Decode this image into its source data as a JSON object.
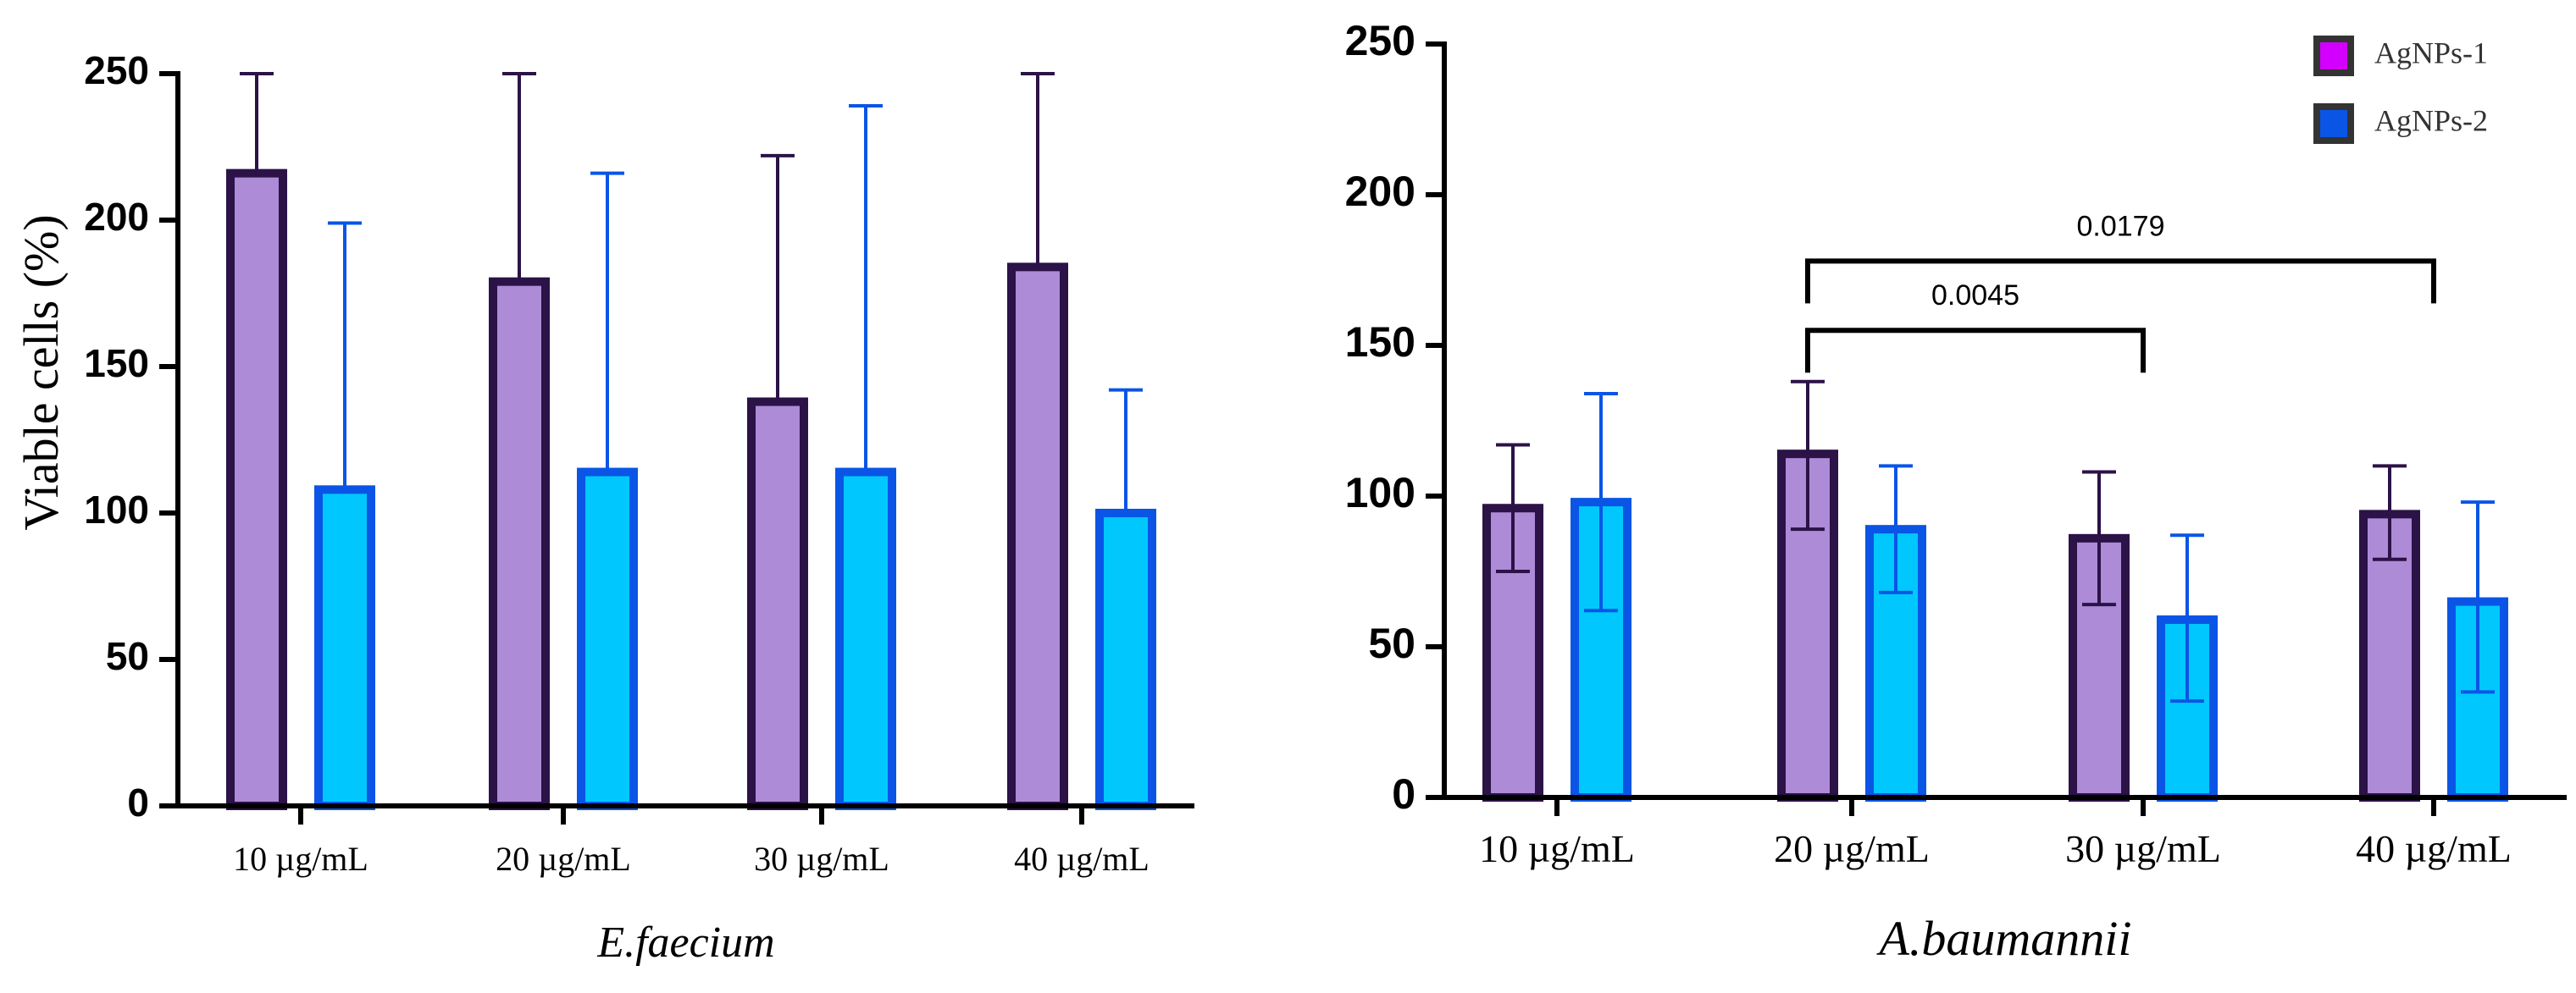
{
  "chart_data": [
    {
      "type": "bar",
      "title": "E.faecium",
      "xlabel": "E.faecium",
      "ylabel": "Viable cells (%)",
      "ylim": [
        0,
        250
      ],
      "yticks": [
        0,
        50,
        100,
        150,
        200,
        250
      ],
      "grid": false,
      "categories": [
        "10 µg/mL",
        "20 µg/mL",
        "30 µg/mL",
        "40 µg/mL"
      ],
      "series": [
        {
          "name": "AgNPs-1",
          "values": [
            216,
            179,
            138,
            184
          ],
          "error_upper": [
            250,
            250,
            222,
            250
          ],
          "error_lower": [
            216,
            179,
            138,
            184
          ],
          "fill": "#ad8bd7",
          "stroke": "#2b1247"
        },
        {
          "name": "AgNPs-2",
          "values": [
            108,
            114,
            114,
            100
          ],
          "error_upper": [
            199,
            216,
            239,
            142
          ],
          "error_lower": [
            108,
            114,
            114,
            100
          ],
          "fill": "#00c8ff",
          "stroke": "#0a55e6"
        }
      ]
    },
    {
      "type": "bar",
      "title": "A.baumannii",
      "xlabel": "A.baumannii",
      "ylabel": "",
      "ylim": [
        0,
        250
      ],
      "yticks": [
        0,
        50,
        100,
        150,
        200,
        250
      ],
      "grid": false,
      "legend": {
        "placement": "top-right",
        "entries": [
          {
            "label": "AgNPs-1",
            "color": "#d400ff"
          },
          {
            "label": "AgNPs-2",
            "color": "#0a55e6"
          }
        ]
      },
      "categories": [
        "10 µg/mL",
        "20 µg/mL",
        "30 µg/mL",
        "40 µg/mL"
      ],
      "series": [
        {
          "name": "AgNPs-1",
          "values": [
            96,
            114,
            86,
            94
          ],
          "error_upper": [
            117,
            138,
            108,
            110
          ],
          "error_lower": [
            75,
            89,
            64,
            79
          ],
          "fill": "#ad8bd7",
          "stroke": "#2b1247"
        },
        {
          "name": "AgNPs-2",
          "values": [
            98,
            89,
            59,
            65
          ],
          "error_upper": [
            134,
            110,
            87,
            98
          ],
          "error_lower": [
            62,
            68,
            32,
            35
          ],
          "fill": "#00c8ff",
          "stroke": "#0a55e6"
        }
      ],
      "annotations": [
        {
          "label": "0.0045",
          "from_category": 1,
          "to_category": 2,
          "y": 155
        },
        {
          "label": "0.0179",
          "from_category": 1,
          "to_category": 3,
          "y": 178
        }
      ]
    }
  ]
}
